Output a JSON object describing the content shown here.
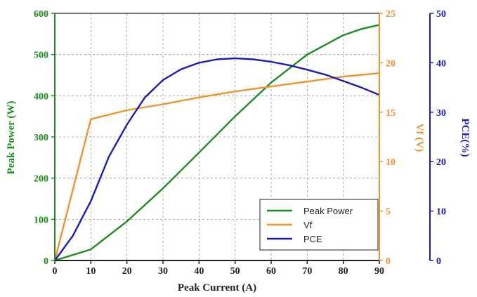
{
  "chart_data": {
    "type": "line",
    "title": "",
    "xlabel": "Peak Current (A)",
    "xlim": [
      0,
      90
    ],
    "x_ticks": [
      0,
      10,
      20,
      30,
      40,
      50,
      60,
      70,
      80,
      90
    ],
    "grid": true,
    "legend_position": "bottom-right",
    "axes": {
      "left": {
        "label": "Peak Power (W)",
        "range": [
          0,
          600
        ],
        "ticks": [
          0,
          100,
          200,
          300,
          400,
          500,
          600
        ],
        "color": "#1e8c1e"
      },
      "right1": {
        "label": "Vf (V)",
        "range": [
          0,
          25
        ],
        "ticks": [
          0,
          5,
          10,
          15,
          20,
          25
        ],
        "color": "#f0922e"
      },
      "right2": {
        "label": "PCE(%)",
        "range": [
          0,
          50
        ],
        "ticks": [
          0,
          10,
          20,
          30,
          40,
          50
        ],
        "color": "#1c1cb0"
      }
    },
    "series": [
      {
        "name": "Peak Power",
        "axis": "left",
        "color": "#1e8c1e",
        "x": [
          0,
          10,
          20,
          30,
          40,
          50,
          60,
          70,
          80,
          85,
          90
        ],
        "y": [
          0,
          27,
          95,
          175,
          262,
          350,
          432,
          500,
          547,
          562,
          572
        ]
      },
      {
        "name": "Vf",
        "axis": "right1",
        "color": "#f0922e",
        "x": [
          0,
          10,
          20,
          30,
          40,
          50,
          60,
          70,
          80,
          90
        ],
        "y": [
          0,
          14.3,
          15.2,
          15.8,
          16.5,
          17.1,
          17.6,
          18.1,
          18.6,
          18.95
        ]
      },
      {
        "name": "PCE",
        "axis": "right2",
        "color": "#1c1cb0",
        "x": [
          0,
          5,
          10,
          15,
          20,
          25,
          30,
          35,
          40,
          45,
          50,
          55,
          60,
          65,
          70,
          75,
          80,
          85,
          90
        ],
        "y": [
          0,
          5,
          12,
          21,
          27.5,
          33,
          36.5,
          38.7,
          40,
          40.7,
          40.9,
          40.7,
          40.2,
          39.5,
          38.6,
          37.6,
          36.3,
          35,
          33.5
        ]
      }
    ]
  }
}
